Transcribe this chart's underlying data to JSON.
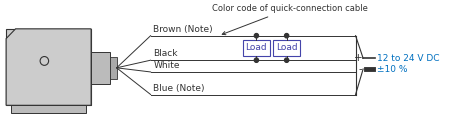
{
  "bg_color": "#ffffff",
  "line_color": "#333333",
  "gray_fill": "#cccccc",
  "light_gray": "#bbbbbb",
  "connector_gray": "#aaaaaa",
  "blue_text": "#0070c0",
  "load_border": "#4444aa",
  "load_text": "#4444aa",
  "annotation_text": "Color code of quick-connection cable",
  "wire_labels": [
    "Brown (Note)",
    "Black",
    "White",
    "Blue (Note)"
  ],
  "load_label": "Load",
  "voltage_label": "12 to 24 V DC",
  "tolerance_label": "±10 %",
  "plus_label": "+",
  "minus_label": "-",
  "font_size": 6.5,
  "small_font_size": 6.0
}
